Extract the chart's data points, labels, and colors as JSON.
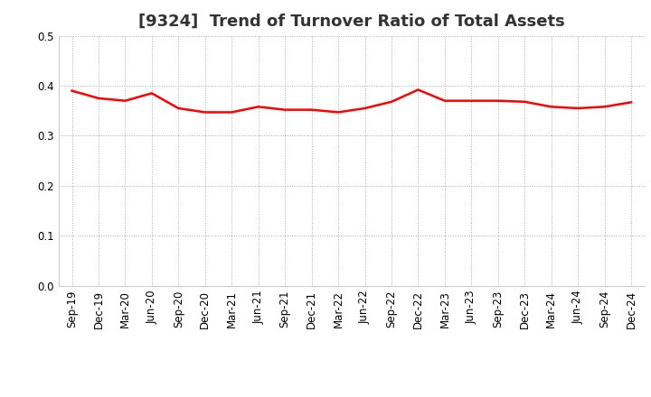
{
  "title": "[9324]  Trend of Turnover Ratio of Total Assets",
  "x_labels": [
    "Sep-19",
    "Dec-19",
    "Mar-20",
    "Jun-20",
    "Sep-20",
    "Dec-20",
    "Mar-21",
    "Jun-21",
    "Sep-21",
    "Dec-21",
    "Mar-22",
    "Jun-22",
    "Sep-22",
    "Dec-22",
    "Mar-23",
    "Jun-23",
    "Sep-23",
    "Dec-23",
    "Mar-24",
    "Jun-24",
    "Sep-24",
    "Dec-24"
  ],
  "y_values": [
    0.39,
    0.375,
    0.37,
    0.385,
    0.355,
    0.347,
    0.347,
    0.358,
    0.352,
    0.352,
    0.347,
    0.355,
    0.368,
    0.392,
    0.37,
    0.37,
    0.37,
    0.368,
    0.358,
    0.355,
    0.358,
    0.367
  ],
  "line_color": "#ff0000",
  "line_width": 1.8,
  "ylim": [
    0.0,
    0.5
  ],
  "yticks": [
    0.0,
    0.1,
    0.2,
    0.3,
    0.4,
    0.5
  ],
  "grid_color": "#aaaaaa",
  "background_color": "#ffffff",
  "title_color": "#333333",
  "title_fontsize": 13,
  "tick_fontsize": 8.5
}
